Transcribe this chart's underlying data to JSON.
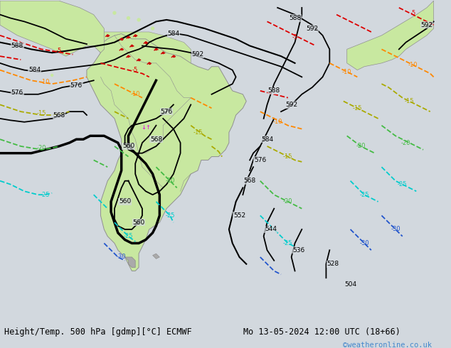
{
  "title_left": "Height/Temp. 500 hPa [gdmp][°C] ECMWF",
  "title_right": "Mo 13-05-2024 12:00 UTC (18+66)",
  "watermark": "©weatheronline.co.uk",
  "bg_color": "#d2d8de",
  "land_color_main": "#c8e8a0",
  "land_color_dark": "#a0b880",
  "border_color": "#909090",
  "z500_color": "#000000",
  "temp_colors": {
    "5": "#ff44ff",
    "-5": "#dd0000",
    "-10": "#ff8800",
    "-15": "#aaaa00",
    "-20": "#44bb44",
    "-25": "#00cccc",
    "-30": "#2255cc"
  },
  "lon_min": -105,
  "lon_max": 25,
  "lat_min": -72,
  "lat_max": 22
}
